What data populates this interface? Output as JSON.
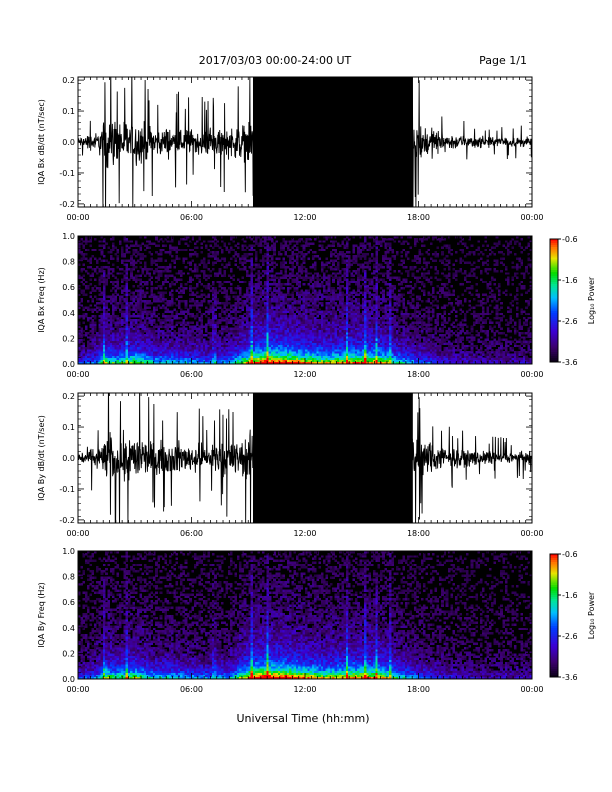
{
  "header": {
    "title": "2017/03/03  00:00-24:00 UT",
    "page": "Page 1/1"
  },
  "footer": {
    "xlabel": "Universal Time (hh:mm)"
  },
  "colorbar": {
    "label": "Log₁₀ Power",
    "ticks": [
      "-0.6",
      "-1.6",
      "-2.6",
      "-3.6"
    ]
  },
  "colors": {
    "background": "#ffffff",
    "trace": "#000000",
    "spectrogram_bg": "#000000"
  },
  "chart_data": [
    {
      "type": "line",
      "ylabel": "IQA Bx dB/dt (nT/sec)",
      "xlim": [
        0,
        24
      ],
      "ylim": [
        -0.21,
        0.21
      ],
      "xticks": [
        "00:00",
        "06:00",
        "12:00",
        "18:00",
        "00:00"
      ],
      "yticks": [
        "0.2",
        "0.1",
        "0.0",
        "-0.1",
        "-0.2"
      ],
      "envelope": {
        "hours": [
          0,
          1,
          1.5,
          2,
          2.5,
          3,
          4,
          5,
          6,
          7,
          8,
          8.8,
          9,
          9.2,
          10,
          11,
          12,
          13,
          14,
          15,
          16,
          16.5,
          17,
          17.5,
          18,
          19,
          20,
          21,
          22,
          23,
          24
        ],
        "amplitude": [
          0.04,
          0.08,
          0.2,
          0.2,
          0.2,
          0.2,
          0.12,
          0.12,
          0.11,
          0.1,
          0.13,
          0.15,
          0.21,
          0.21,
          0.21,
          0.21,
          0.21,
          0.21,
          0.21,
          0.21,
          0.21,
          0.21,
          0.21,
          0.21,
          0.16,
          0.1,
          0.06,
          0.05,
          0.04,
          0.04,
          0.04
        ]
      }
    },
    {
      "type": "heatmap",
      "ylabel": "IQA Bx Freq (Hz)",
      "xlim": [
        0,
        24
      ],
      "ylim": [
        0,
        1.0
      ],
      "zlim": [
        -3.6,
        -0.6
      ],
      "xticks": [
        "00:00",
        "06:00",
        "12:00",
        "18:00",
        "00:00"
      ],
      "yticks": [
        "1.0",
        "0.8",
        "0.6",
        "0.4",
        "0.2",
        "0.0"
      ],
      "activity": {
        "hours": [
          0,
          1,
          1.5,
          2,
          3,
          4,
          5,
          6,
          7,
          8,
          9,
          9.5,
          10,
          11,
          12,
          13,
          14,
          15,
          16,
          17,
          18,
          19,
          20,
          21,
          22,
          23,
          24
        ],
        "level": [
          0.3,
          0.4,
          0.7,
          0.6,
          0.7,
          0.5,
          0.5,
          0.45,
          0.4,
          0.45,
          0.8,
          0.9,
          1.0,
          0.95,
          0.85,
          0.75,
          0.8,
          0.85,
          0.8,
          0.55,
          0.4,
          0.3,
          0.25,
          0.2,
          0.2,
          0.2,
          0.2
        ]
      },
      "bright_columns_hours": [
        1.4,
        2.6,
        7.2,
        9.2,
        10.0,
        14.2,
        15.2,
        15.8,
        16.5
      ]
    },
    {
      "type": "line",
      "ylabel": "IQA By dB/dt (nT/sec)",
      "xlim": [
        0,
        24
      ],
      "ylim": [
        -0.21,
        0.21
      ],
      "xticks": [
        "00:00",
        "06:00",
        "12:00",
        "18:00",
        "00:00"
      ],
      "yticks": [
        "0.2",
        "0.1",
        "0.0",
        "-0.1",
        "-0.2"
      ],
      "envelope": {
        "hours": [
          0,
          1,
          1.5,
          2,
          2.5,
          3,
          4,
          5,
          6,
          7,
          8,
          8.8,
          9,
          9.2,
          10,
          11,
          12,
          13,
          14,
          15,
          16,
          16.5,
          17,
          17.5,
          18,
          19,
          20,
          21,
          22,
          23,
          24
        ],
        "amplitude": [
          0.05,
          0.09,
          0.2,
          0.2,
          0.2,
          0.2,
          0.13,
          0.13,
          0.12,
          0.11,
          0.14,
          0.16,
          0.21,
          0.21,
          0.21,
          0.21,
          0.21,
          0.21,
          0.21,
          0.21,
          0.21,
          0.21,
          0.21,
          0.21,
          0.16,
          0.11,
          0.07,
          0.06,
          0.05,
          0.05,
          0.05
        ]
      }
    },
    {
      "type": "heatmap",
      "ylabel": "IQA By Freq (Hz)",
      "xlim": [
        0,
        24
      ],
      "ylim": [
        0,
        1.0
      ],
      "zlim": [
        -3.6,
        -0.6
      ],
      "xticks": [
        "00:00",
        "06:00",
        "12:00",
        "18:00",
        "00:00"
      ],
      "yticks": [
        "1.0",
        "0.8",
        "0.6",
        "0.4",
        "0.2",
        "0.0"
      ],
      "activity": {
        "hours": [
          0,
          1,
          1.5,
          2,
          3,
          4,
          5,
          6,
          7,
          8,
          9,
          9.5,
          10,
          11,
          12,
          13,
          14,
          15,
          16,
          17,
          18,
          19,
          20,
          21,
          22,
          23,
          24
        ],
        "level": [
          0.3,
          0.4,
          0.7,
          0.6,
          0.7,
          0.5,
          0.5,
          0.45,
          0.4,
          0.45,
          0.85,
          0.95,
          1.0,
          0.95,
          0.85,
          0.75,
          0.8,
          0.85,
          0.8,
          0.55,
          0.4,
          0.3,
          0.25,
          0.2,
          0.2,
          0.2,
          0.2
        ]
      },
      "bright_columns_hours": [
        1.4,
        2.6,
        7.2,
        9.2,
        10.0,
        14.2,
        15.2,
        15.8,
        16.5
      ]
    }
  ]
}
